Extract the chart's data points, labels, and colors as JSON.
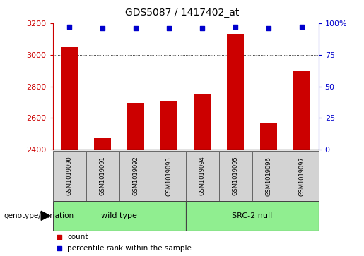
{
  "title": "GDS5087 / 1417402_at",
  "samples": [
    "GSM1019090",
    "GSM1019091",
    "GSM1019092",
    "GSM1019093",
    "GSM1019094",
    "GSM1019095",
    "GSM1019096",
    "GSM1019097"
  ],
  "counts": [
    3050,
    2475,
    2695,
    2710,
    2755,
    3130,
    2565,
    2895
  ],
  "percentiles": [
    97,
    96,
    96,
    96,
    96,
    97,
    96,
    97
  ],
  "ylim_left": [
    2400,
    3200
  ],
  "ylim_right": [
    0,
    100
  ],
  "yticks_left": [
    2400,
    2600,
    2800,
    3000,
    3200
  ],
  "yticks_right": [
    0,
    25,
    50,
    75,
    100
  ],
  "bar_color": "#cc0000",
  "dot_color": "#0000cc",
  "groups": [
    {
      "label": "wild type",
      "indices": [
        0,
        1,
        2,
        3
      ],
      "color": "#90ee90"
    },
    {
      "label": "SRC-2 null",
      "indices": [
        4,
        5,
        6,
        7
      ],
      "color": "#90ee90"
    }
  ],
  "group_box_color": "#d3d3d3",
  "genotype_label": "genotype/variation",
  "legend_items": [
    {
      "label": "count",
      "color": "#cc0000"
    },
    {
      "label": "percentile rank within the sample",
      "color": "#0000cc"
    }
  ],
  "fig_width": 5.15,
  "fig_height": 3.63,
  "dpi": 100
}
